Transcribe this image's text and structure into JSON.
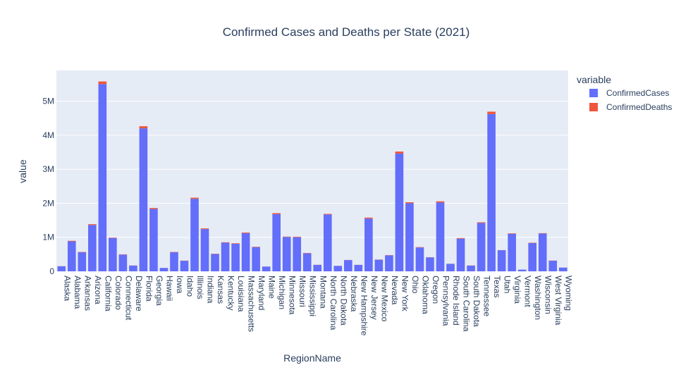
{
  "chart_data": {
    "type": "bar",
    "stacked": true,
    "title": "Confirmed Cases and Deaths per State (2021)",
    "xlabel": "RegionName",
    "ylabel": "value",
    "ylim": [
      0,
      5900000
    ],
    "yticks": [
      {
        "value": 0,
        "label": "0"
      },
      {
        "value": 1000000,
        "label": "1M"
      },
      {
        "value": 2000000,
        "label": "2M"
      },
      {
        "value": 3000000,
        "label": "3M"
      },
      {
        "value": 4000000,
        "label": "4M"
      },
      {
        "value": 5000000,
        "label": "5M"
      }
    ],
    "legend": {
      "title": "variable",
      "placement": "top-right"
    },
    "grid": true,
    "categories": [
      "Alaska",
      "Alabama",
      "Arkansas",
      "Arizona",
      "California",
      "Colorado",
      "Connecticut",
      "Delaware",
      "Florida",
      "Georgia",
      "Hawaii",
      "Iowa",
      "Idaho",
      "Illinois",
      "Indiana",
      "Kansas",
      "Kentucky",
      "Louisiana",
      "Massachusetts",
      "Maryland",
      "Maine",
      "Michigan",
      "Minnesota",
      "Missouri",
      "Mississippi",
      "Montana",
      "North Carolina",
      "North Dakota",
      "Nebraska",
      "New Hampshire",
      "New Jersey",
      "New Mexico",
      "Nevada",
      "New York",
      "Ohio",
      "Oklahoma",
      "Oregon",
      "Pennsylvania",
      "Rhode Island",
      "South Carolina",
      "South Dakota",
      "Tennessee",
      "Texas",
      "Utah",
      "Virginia",
      "Vermont",
      "Washington",
      "Wisconsin",
      "West Virginia",
      "Wyoming"
    ],
    "series": [
      {
        "name": "ConfirmedCases",
        "color": "#636efa",
        "values": [
          150000,
          880000,
          560000,
          1360000,
          5500000,
          980000,
          490000,
          170000,
          4200000,
          1830000,
          100000,
          560000,
          310000,
          2130000,
          1240000,
          510000,
          840000,
          810000,
          1120000,
          710000,
          140000,
          1680000,
          1010000,
          1000000,
          530000,
          190000,
          1670000,
          160000,
          330000,
          190000,
          1550000,
          340000,
          470000,
          3460000,
          2000000,
          700000,
          410000,
          2020000,
          220000,
          960000,
          170000,
          1420000,
          4620000,
          620000,
          1100000,
          50000,
          830000,
          1110000,
          310000,
          110000
        ]
      },
      {
        "name": "ConfirmedDeaths",
        "color": "#ef553b",
        "values": [
          1100,
          16500,
          9000,
          24500,
          77000,
          10500,
          9600,
          2400,
          62000,
          30000,
          1000,
          9300,
          4300,
          33000,
          20500,
          8000,
          14000,
          15500,
          20000,
          11900,
          1500,
          30000,
          9800,
          16000,
          10200,
          2800,
          18600,
          2000,
          3700,
          1700,
          28000,
          6000,
          8000,
          59000,
          29000,
          12000,
          5300,
          36000,
          3000,
          16500,
          2800,
          21000,
          70000,
          3800,
          16000,
          400,
          10000,
          11600,
          5600,
          1600
        ]
      }
    ]
  }
}
